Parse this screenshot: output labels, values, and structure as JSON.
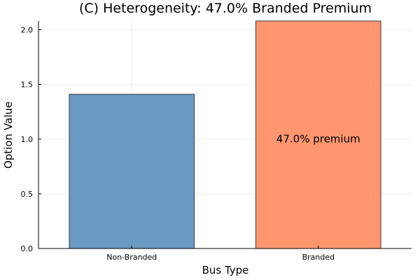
{
  "chart_data": {
    "type": "bar",
    "title": "(C) Heterogeneity: 47.0% Branded Premium",
    "xlabel": "Bus Type",
    "ylabel": "Option Value",
    "categories": [
      "Non-Branded",
      "Branded"
    ],
    "values": [
      1.41,
      2.08
    ],
    "colors": [
      "#6b9ac4",
      "#ff9670"
    ],
    "ylim": [
      0,
      2.08
    ],
    "yticks": [
      0.0,
      0.5,
      1.0,
      1.5,
      2.0
    ],
    "ytick_labels": [
      "0.0",
      "0.5",
      "1.0",
      "1.5",
      "2.0"
    ],
    "grid": true,
    "legend": "none",
    "annotations": [
      {
        "text": "47.0% premium",
        "x": "Branded",
        "y": 1.0
      }
    ]
  }
}
